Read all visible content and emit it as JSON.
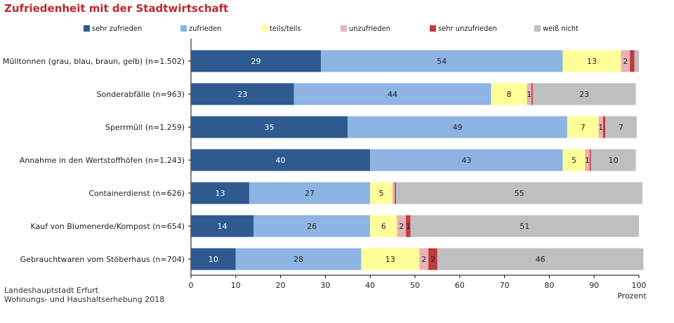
{
  "chart_data": {
    "type": "bar",
    "orientation": "horizontal",
    "stacked": true,
    "title": "Zufriedenheit mit der Stadtwirtschaft",
    "xlabel": "Prozent",
    "ylabel": "",
    "xlim": [
      0,
      100
    ],
    "xticks": [
      "0",
      "10",
      "20",
      "30",
      "40",
      "50",
      "60",
      "70",
      "80",
      "90",
      "100"
    ],
    "legend_position": "top",
    "categories": [
      "Mülltonnen (grau, blau, braun, gelb) (n=1.502)",
      "Sonderabfälle (n=963)",
      "Sperrmüll (n=1.259)",
      "Annahme in den Wertstoffhöfen (n=1.243)",
      "Containerdienst (n=626)",
      "Kauf von Blumenerde/Kompost (n=654)",
      "Gebrauchtwaren vom Stöberhaus (n=704)"
    ],
    "series": [
      {
        "name": "sehr zufrieden",
        "color": "#2e5a8f",
        "label_color": "#ffffff",
        "values": [
          29,
          23,
          35,
          40,
          13,
          14,
          10
        ]
      },
      {
        "name": "zufrieden",
        "color": "#8db4e2",
        "label_color": "#222222",
        "values": [
          54,
          44,
          49,
          43,
          27,
          26,
          28
        ]
      },
      {
        "name": "teils/teils",
        "color": "#ffff99",
        "label_color": "#222222",
        "values": [
          13,
          8,
          7,
          5,
          5,
          6,
          13
        ]
      },
      {
        "name": "unzufrieden",
        "color": "#e6b3b6",
        "label_color": "#222222",
        "values": [
          2,
          1,
          1,
          1,
          0.5,
          2,
          2
        ]
      },
      {
        "name": "sehr unzufrieden",
        "color": "#c0393b",
        "label_color": "#222222",
        "values": [
          1,
          0.3,
          0.5,
          0.3,
          0.3,
          1,
          2
        ]
      },
      {
        "name": "weiß nicht",
        "color": "#bfbfbf",
        "label_color": "#222222",
        "values": [
          1,
          23,
          7,
          10,
          55,
          51,
          46
        ]
      }
    ],
    "segment_labels": [
      [
        "29",
        "54",
        "13",
        "2",
        "",
        ""
      ],
      [
        "23",
        "44",
        "8",
        "1",
        "",
        "23"
      ],
      [
        "35",
        "49",
        "7",
        "1",
        "",
        "7"
      ],
      [
        "40",
        "43",
        "5",
        "1",
        "",
        "10"
      ],
      [
        "13",
        "27",
        "5",
        "",
        "",
        "55"
      ],
      [
        "14",
        "26",
        "6",
        "2",
        "1",
        "51"
      ],
      [
        "10",
        "28",
        "13",
        "2",
        "2",
        "46"
      ]
    ]
  },
  "source": {
    "line1": "Landeshauptstadt Erfurt",
    "line2": "Wohnungs- und Haushaltserhebung 2018"
  }
}
